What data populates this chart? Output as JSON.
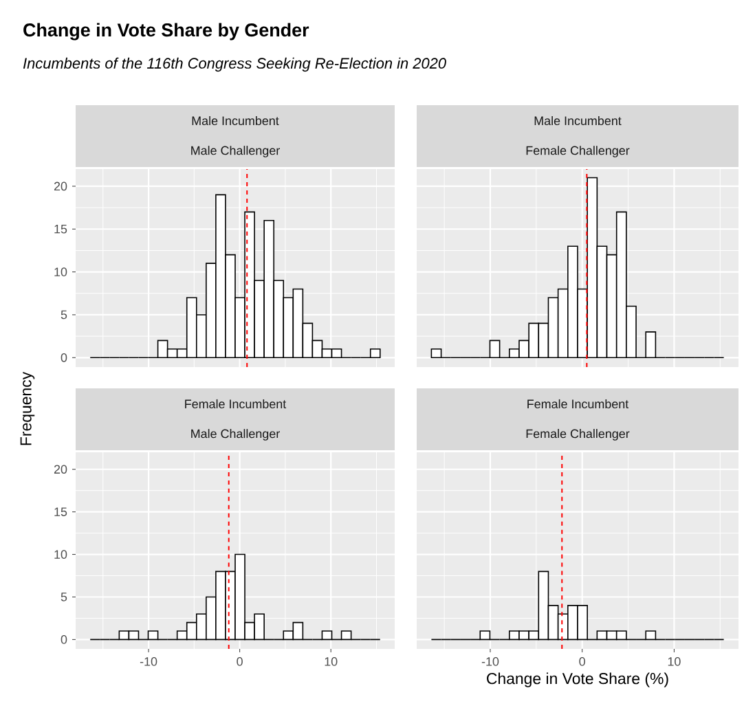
{
  "chart_data": [
    {
      "type": "histogram",
      "title": "Change in Vote Share by Gender",
      "subtitle": "Incumbents of the 116th Congress Seeking Re-Election in 2020",
      "ylabel": "Frequency",
      "annotations": [
        "Male Incumbent",
        "Male Challenger"
      ],
      "bins": [
        -16.4,
        -15.34,
        -14.28,
        -13.22,
        -12.16,
        -11.1,
        -10.04,
        -8.98,
        -7.92,
        -6.86,
        -5.8,
        -4.74,
        -3.68,
        -2.62,
        -1.56,
        -0.5,
        0.56,
        1.62,
        2.68,
        3.74,
        4.8,
        5.86,
        6.92,
        7.98,
        9.04,
        10.1,
        11.16,
        12.22,
        13.28,
        14.34,
        15.4
      ],
      "values": [
        0,
        0,
        0,
        0,
        0,
        0,
        0,
        2,
        1,
        1,
        7,
        5,
        11,
        19,
        12,
        7,
        17,
        9,
        16,
        9,
        7,
        8,
        4,
        2,
        1,
        1,
        0,
        0,
        0,
        1
      ],
      "xlim": [
        -18,
        17
      ],
      "ylim": [
        -1.1,
        22
      ],
      "xticks": [
        -10,
        0,
        10
      ],
      "yticks": [
        0,
        5,
        10,
        15,
        20
      ],
      "grid": true,
      "tick_labels": "y",
      "ref_lines": [
        {
          "axis": "x",
          "value": 0.8,
          "color": "#ff0000",
          "line_style": "dashed"
        }
      ]
    },
    {
      "type": "histogram",
      "annotations": [
        "Male Incumbent",
        "Female Challenger"
      ],
      "bins": [
        -16.4,
        -15.34,
        -14.28,
        -13.22,
        -12.16,
        -11.1,
        -10.04,
        -8.98,
        -7.92,
        -6.86,
        -5.8,
        -4.74,
        -3.68,
        -2.62,
        -1.56,
        -0.5,
        0.56,
        1.62,
        2.68,
        3.74,
        4.8,
        5.86,
        6.92,
        7.98,
        9.04,
        10.1,
        11.16,
        12.22,
        13.28,
        14.34,
        15.4
      ],
      "values": [
        1,
        0,
        0,
        0,
        0,
        0,
        2,
        0,
        1,
        2,
        4,
        4,
        7,
        8,
        13,
        8,
        21,
        13,
        12,
        17,
        6,
        0,
        3,
        0,
        0,
        0,
        0,
        0,
        0,
        0
      ],
      "xlim": [
        -18,
        17
      ],
      "ylim": [
        -1.1,
        22
      ],
      "xticks": [
        -10,
        0,
        10
      ],
      "yticks": [
        0,
        5,
        10,
        15,
        20
      ],
      "grid": true,
      "tick_labels": false,
      "ref_lines": [
        {
          "axis": "x",
          "value": 0.5,
          "color": "#ff0000",
          "line_style": "dashed"
        }
      ]
    },
    {
      "type": "histogram",
      "annotations": [
        "Female Incumbent",
        "Male Challenger"
      ],
      "bins": [
        -16.4,
        -15.34,
        -14.28,
        -13.22,
        -12.16,
        -11.1,
        -10.04,
        -8.98,
        -7.92,
        -6.86,
        -5.8,
        -4.74,
        -3.68,
        -2.62,
        -1.56,
        -0.5,
        0.56,
        1.62,
        2.68,
        3.74,
        4.8,
        5.86,
        6.92,
        7.98,
        9.04,
        10.1,
        11.16,
        12.22,
        13.28,
        14.34,
        15.4
      ],
      "values": [
        0,
        0,
        0,
        1,
        1,
        0,
        1,
        0,
        0,
        1,
        2,
        3,
        5,
        8,
        8,
        10,
        2,
        3,
        0,
        0,
        1,
        2,
        0,
        0,
        1,
        0,
        1,
        0,
        0,
        0
      ],
      "xlim": [
        -18,
        17
      ],
      "ylim": [
        -1.1,
        22
      ],
      "xticks": [
        -10,
        0,
        10
      ],
      "yticks": [
        0,
        5,
        10,
        15,
        20
      ],
      "grid": true,
      "ref_lines": [
        {
          "axis": "x",
          "value": -1.2,
          "color": "#ff0000",
          "line_style": "dashed"
        }
      ]
    },
    {
      "type": "histogram",
      "xlabel": "Change in Vote Share (%)",
      "annotations": [
        "Female Incumbent",
        "Female Challenger"
      ],
      "bins": [
        -16.4,
        -15.34,
        -14.28,
        -13.22,
        -12.16,
        -11.1,
        -10.04,
        -8.98,
        -7.92,
        -6.86,
        -5.8,
        -4.74,
        -3.68,
        -2.62,
        -1.56,
        -0.5,
        0.56,
        1.62,
        2.68,
        3.74,
        4.8,
        5.86,
        6.92,
        7.98,
        9.04,
        10.1,
        11.16,
        12.22,
        13.28,
        14.34,
        15.4
      ],
      "values": [
        0,
        0,
        0,
        0,
        0,
        1,
        0,
        0,
        1,
        1,
        1,
        8,
        4,
        3,
        4,
        4,
        0,
        1,
        1,
        1,
        0,
        0,
        1,
        0,
        0,
        0,
        0,
        0,
        0,
        0
      ],
      "xlim": [
        -18,
        17
      ],
      "ylim": [
        -1.1,
        22
      ],
      "xticks": [
        -10,
        0,
        10
      ],
      "yticks": [
        0,
        5,
        10,
        15,
        20
      ],
      "grid": true,
      "tick_labels": "x",
      "ref_lines": [
        {
          "axis": "x",
          "value": -2.2,
          "color": "#ff0000",
          "line_style": "dashed"
        }
      ]
    }
  ]
}
